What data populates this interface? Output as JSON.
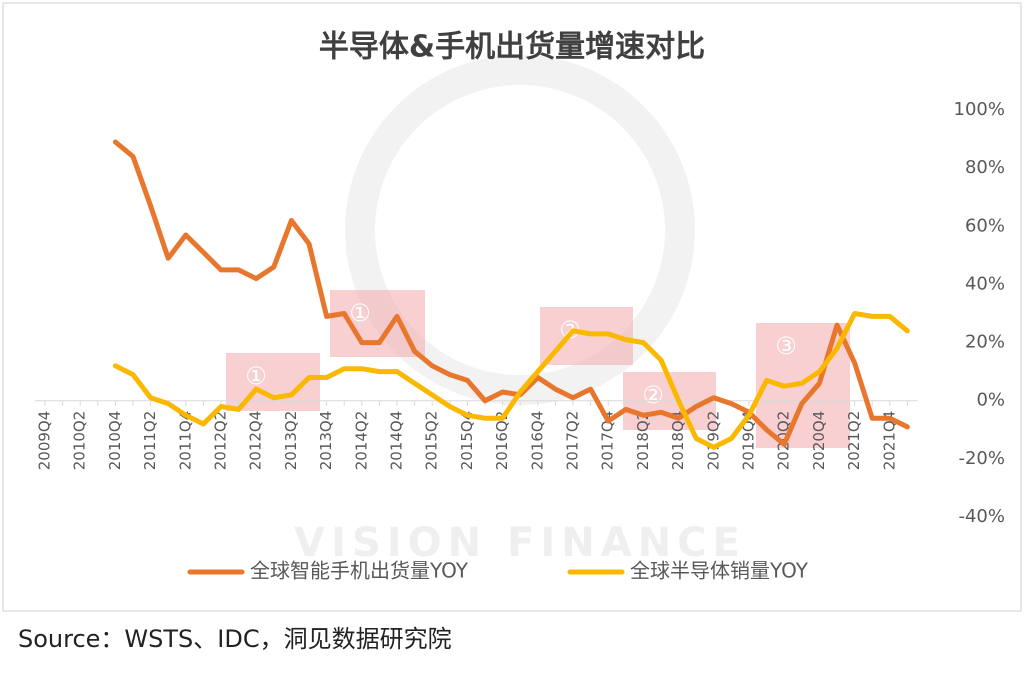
{
  "chart_data": {
    "type": "line",
    "title": "半导体&手机出货量增速对比",
    "watermark": "VISION FINANCE",
    "source": "Source：WSTS、IDC，洞见数据研究院",
    "annotations": [
      "①",
      "①",
      "②",
      "②",
      "③"
    ],
    "categories": [
      "2009Q4",
      null,
      "2010Q2",
      null,
      "2010Q4",
      null,
      "2011Q2",
      null,
      "2011Q4",
      null,
      "2012Q2",
      null,
      "2012Q4",
      null,
      "2013Q2",
      null,
      "2013Q4",
      null,
      "2014Q2",
      null,
      "2014Q4",
      null,
      "2015Q2",
      null,
      "2015Q4",
      null,
      "2016Q2",
      null,
      "2016Q4",
      null,
      "2017Q2",
      null,
      "2017Q4",
      null,
      "2018Q2",
      null,
      "2018Q4",
      null,
      "2019Q2",
      null,
      "2019Q4",
      null,
      "2020Q2",
      null,
      "2020Q4",
      null,
      "2021Q2",
      null,
      "2021Q4",
      null
    ],
    "series": [
      {
        "name": "全球智能手机出货量YOY",
        "color": "#e8762c",
        "values": [
          null,
          null,
          null,
          null,
          89,
          84,
          67,
          49,
          57,
          51,
          45,
          45,
          42,
          46,
          62,
          54,
          29,
          30,
          20,
          20,
          29,
          17,
          12,
          9,
          7,
          0,
          3,
          2,
          8,
          4,
          1,
          4,
          -7,
          -3,
          -5,
          -4,
          -6,
          -2,
          1,
          -1,
          -4,
          -10,
          -15,
          -1,
          6,
          26,
          13,
          -6,
          -6,
          -9
        ]
      },
      {
        "name": "全球半导体销量YOY",
        "color": "#fbb800",
        "values": [
          null,
          null,
          null,
          null,
          12,
          9,
          1,
          -1,
          -5,
          -8,
          -2,
          -3,
          4,
          1,
          2,
          8,
          8,
          11,
          11,
          10,
          10,
          6,
          2,
          -2,
          -5,
          -6,
          -6,
          3,
          10,
          17,
          24,
          23,
          23,
          21,
          20,
          14,
          0,
          -13,
          -16,
          -13,
          -5,
          7,
          5,
          6,
          10,
          18,
          30,
          29,
          29,
          24
        ]
      }
    ],
    "ylim": [
      -40,
      100
    ],
    "yticks": [
      {
        "value": -40,
        "label": "-40%"
      },
      {
        "value": -20,
        "label": "-20%"
      },
      {
        "value": 0,
        "label": "0%"
      },
      {
        "value": 20,
        "label": "20%"
      },
      {
        "value": 40,
        "label": "40%"
      },
      {
        "value": 60,
        "label": "60%"
      },
      {
        "value": 80,
        "label": "80%"
      },
      {
        "value": 100,
        "label": "100%"
      }
    ],
    "legend": "bottom"
  }
}
